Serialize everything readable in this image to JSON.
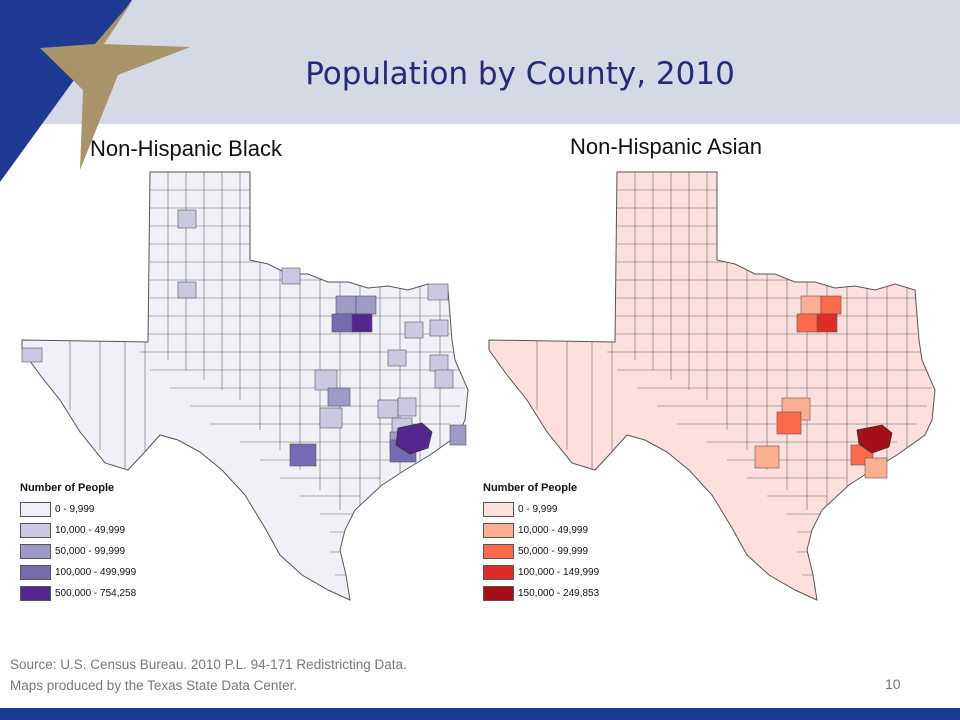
{
  "slide": {
    "title": "Population by County, 2010",
    "page_number": "10"
  },
  "colors": {
    "header_bg": "#d5d9e5",
    "title": "#26297a",
    "brand_blue": "#1f3a93",
    "star_gold": "#a89468"
  },
  "maps": [
    {
      "title": "Non-Hispanic Black",
      "legend_title": "Number of People",
      "legend": [
        {
          "label": "0 - 9,999",
          "color": "#f0f0f7"
        },
        {
          "label": "10,000 - 49,999",
          "color": "#cbc9e2"
        },
        {
          "label": "50,000 - 99,999",
          "color": "#9e9ac8"
        },
        {
          "label": "100,000 - 499,999",
          "color": "#756bb1"
        },
        {
          "label": "500,000 - 754,258",
          "color": "#54278f"
        }
      ]
    },
    {
      "title": "Non-Hispanic Asian",
      "legend_title": "Number of People",
      "legend": [
        {
          "label": "0 - 9,999",
          "color": "#fde0dd"
        },
        {
          "label": "10,000 - 49,999",
          "color": "#fcae91"
        },
        {
          "label": "50,000 - 99,999",
          "color": "#fb6a4a"
        },
        {
          "label": "100,000 - 149,999",
          "color": "#de2d26"
        },
        {
          "label": "150,000 - 249,853",
          "color": "#a50f15"
        }
      ]
    }
  ],
  "footnote": {
    "line1": "Source: U.S. Census Bureau. 2010 P.L. 94-171 Redistricting Data.",
    "line2": "Maps produced by the Texas State Data Center."
  }
}
